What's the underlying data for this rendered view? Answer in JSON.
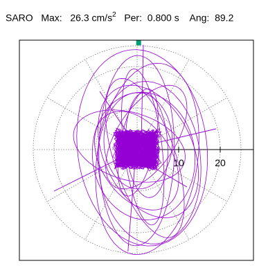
{
  "header": {
    "station": "SARO",
    "max_label": "Max:",
    "max_value": "26.3 cm/s",
    "max_exp": "2",
    "per_label": "Per:",
    "per_value": "0.800 s",
    "ang_label": "Ang:",
    "ang_value": "89.2"
  },
  "chart_data": {
    "type": "polar_trace",
    "title": "SARO  Max: 26.3 cm/s2  Per: 0.800 s  Ang: 89.2",
    "radial_ticks": [
      10,
      20
    ],
    "radial_max": 25,
    "trace_color": "#9400d3",
    "peak_marker_color": "#009e73",
    "peak": {
      "r": 26.3,
      "angle_deg": 89.2
    },
    "grid": true
  }
}
